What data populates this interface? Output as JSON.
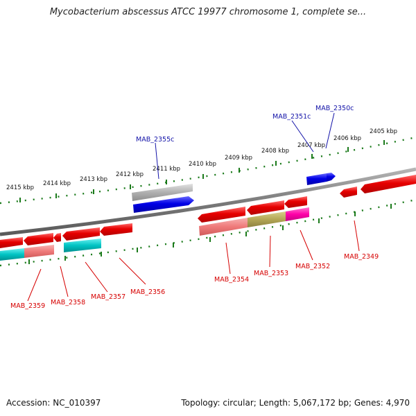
{
  "title": "Mycobacterium abscessus ATCC 19977 chromosome 1, complete se...",
  "footer": {
    "accession": "Accession: NC_010397",
    "summary": "Topology: circular; Length: 5,067,172 bp; Genes: 4,970"
  },
  "colors": {
    "background": "#ffffff",
    "backbone": "#7f7f7f",
    "tick_marks": "#1a7a1a",
    "forward_label": "#1212a8",
    "reverse_label": "#d60000",
    "forward_gene": "#0000e6",
    "reverse_gene": "#e60000",
    "orf_gray": "#a8a8a8",
    "orf_cyan": "#00c4c4",
    "orf_pink": "#ef7a7a",
    "orf_olive": "#b3a655",
    "orf_magenta": "#ff00a8"
  },
  "axis": {
    "unit": "kbp",
    "tick_labels": [
      "2415 kbp",
      "2414 kbp",
      "2413 kbp",
      "2412 kbp",
      "2411 kbp",
      "2410 kbp",
      "2409 kbp",
      "2408 kbp",
      "2407 kbp",
      "2406 kbp",
      "2405 kbp"
    ]
  },
  "genes": {
    "forward": [
      {
        "label": "MAB_2355c",
        "color": "blue"
      },
      {
        "label": "MAB_2351c",
        "color": "blue"
      },
      {
        "label": "MAB_2350c",
        "color": "blue"
      }
    ],
    "reverse": [
      {
        "label": "MAB_2359",
        "color": "red"
      },
      {
        "label": "MAB_2358",
        "color": "red"
      },
      {
        "label": "MAB_2357",
        "color": "red"
      },
      {
        "label": "MAB_2356",
        "color": "red"
      },
      {
        "label": "MAB_2354",
        "color": "red"
      },
      {
        "label": "MAB_2353",
        "color": "red"
      },
      {
        "label": "MAB_2352",
        "color": "red"
      },
      {
        "label": "MAB_2349",
        "color": "red"
      }
    ]
  }
}
